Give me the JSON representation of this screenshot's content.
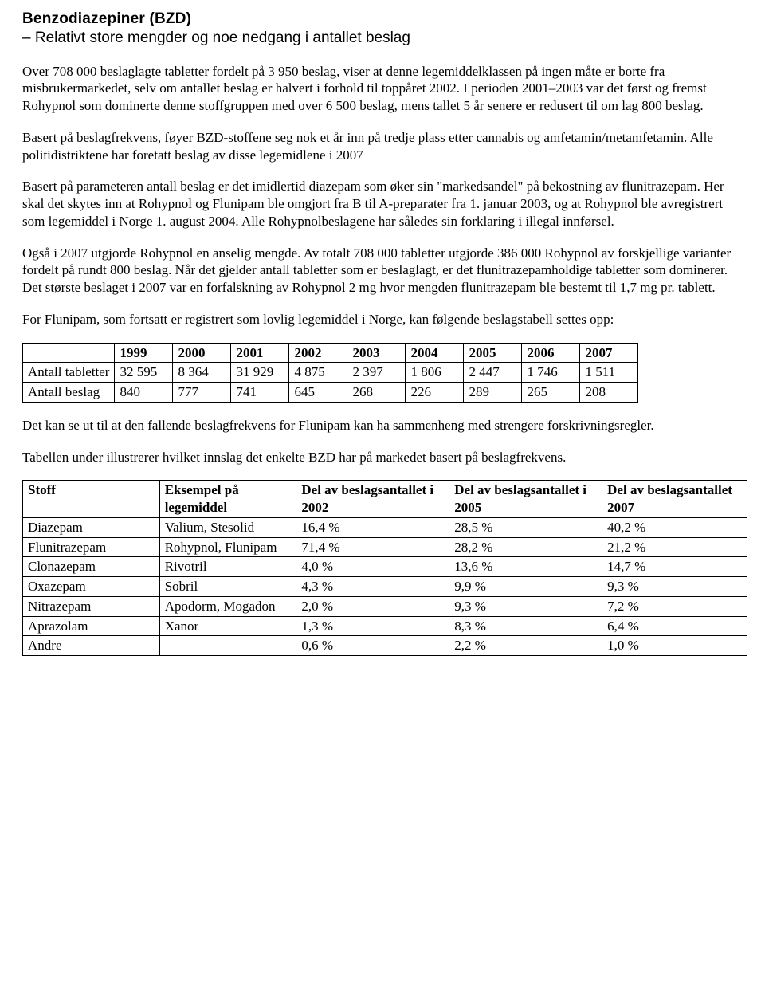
{
  "heading": "Benzodiazepiner (BZD)",
  "subheading": "– Relativt store mengder og noe nedgang i antallet beslag",
  "paragraphs": {
    "p1": "Over 708 000 beslaglagte tabletter fordelt på 3 950 beslag, viser at denne legemiddelklassen på ingen måte er borte fra misbrukermarkedet, selv om antallet beslag er halvert i forhold til toppåret 2002. I perioden 2001–2003 var det først og fremst Rohypnol som dominerte denne stoffgruppen med over 6 500 beslag, mens tallet 5 år senere er redusert til om lag 800 beslag.",
    "p2": "Basert på beslagfrekvens, føyer BZD-stoffene seg nok et år inn på tredje plass etter cannabis og amfetamin/metamfetamin. Alle politidistriktene har foretatt beslag av disse legemidlene i 2007",
    "p3": "Basert på parameteren antall beslag er det imidlertid diazepam som øker sin \"markedsandel\" på bekostning av flunitrazepam. Her skal det skytes inn at Rohypnol og Flunipam ble omgjort fra B til A-preparater fra 1. januar 2003, og at Rohypnol ble avregistrert som legemiddel i Norge 1. august 2004. Alle Rohypnolbeslagene har således sin forklaring i illegal innførsel.",
    "p4": "Også i 2007 utgjorde Rohypnol en anselig mengde. Av totalt 708 000 tabletter utgjorde 386 000 Rohypnol av forskjellige varianter fordelt på rundt 800 beslag. Når det gjelder antall tabletter som er beslaglagt, er det flunitrazepamholdige tabletter som dominerer. Det største beslaget i 2007 var en forfalskning av Rohypnol 2 mg hvor mengden flunitrazepam ble bestemt til 1,7 mg pr. tablett.",
    "p5": "For Flunipam, som fortsatt er registrert som lovlig legemiddel i Norge, kan følgende beslagstabell settes opp:",
    "p6": "Det kan se ut til at den fallende beslagfrekvens for Flunipam kan ha sammenheng med strengere forskrivningsregler.",
    "p7": "Tabellen under illustrerer hvilket innslag det enkelte BZD har på markedet basert på beslagfrekvens."
  },
  "table1": {
    "years": [
      "1999",
      "2000",
      "2001",
      "2002",
      "2003",
      "2004",
      "2005",
      "2006",
      "2007"
    ],
    "rows": [
      {
        "label": "Antall tabletter",
        "cells": [
          "32 595",
          "8 364",
          "31 929",
          "4 875",
          "2 397",
          "1 806",
          "2 447",
          "1 746",
          "1 511"
        ]
      },
      {
        "label": "Antall beslag",
        "cells": [
          "840",
          "777",
          "741",
          "645",
          "268",
          "226",
          "289",
          "265",
          "208"
        ]
      }
    ]
  },
  "table2": {
    "headers": [
      "Stoff",
      "Eksempel på legemiddel",
      "Del av beslagsantallet i 2002",
      "Del av beslagsantallet i 2005",
      "Del av beslagsantallet  2007"
    ],
    "col_widths": [
      "170px",
      "170px",
      "190px",
      "190px",
      "180px"
    ],
    "rows": [
      [
        "Diazepam",
        "Valium, Stesolid",
        "16,4 %",
        "28,5 %",
        "40,2 %"
      ],
      [
        "Flunitrazepam",
        "Rohypnol, Flunipam",
        "71,4 %",
        "28,2 %",
        "21,2 %"
      ],
      [
        "Clonazepam",
        "Rivotril",
        "4,0 %",
        "13,6 %",
        "14,7 %"
      ],
      [
        "Oxazepam",
        "Sobril",
        "4,3 %",
        "9,9 %",
        "9,3 %"
      ],
      [
        "Nitrazepam",
        "Apodorm, Mogadon",
        "2,0 %",
        "9,3 %",
        "7,2 %"
      ],
      [
        "Aprazolam",
        "Xanor",
        "1,3 %",
        "8,3 %",
        "6,4 %"
      ],
      [
        "Andre",
        "",
        "0,6 %",
        "2,2 %",
        "1,0 %"
      ]
    ]
  }
}
